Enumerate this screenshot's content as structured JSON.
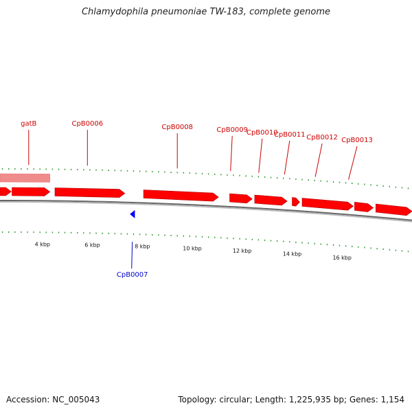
{
  "title": "Chlamydophila pneumoniae TW-183, complete genome",
  "footer": {
    "accession": "Accession: NC_005043",
    "summary": "Topology: circular; Length: 1,225,935 bp; Genes: 1,154"
  },
  "colors": {
    "forward_gene": "#ff0000",
    "reverse_gene": "#0000ff",
    "label_forward": "#cc0000",
    "label_reverse": "#0000cc",
    "tick": "#339933",
    "backbone": "#888888"
  },
  "axis": {
    "kbp_min": 2.3,
    "kbp_max": 18.8
  },
  "scale_labels": [
    {
      "kbp": 4,
      "text": "4 kbp"
    },
    {
      "kbp": 6,
      "text": "6 kbp"
    },
    {
      "kbp": 8,
      "text": "8 kbp"
    },
    {
      "kbp": 10,
      "text": "10 kbp"
    },
    {
      "kbp": 12,
      "text": "12 kbp"
    },
    {
      "kbp": 14,
      "text": "14 kbp"
    },
    {
      "kbp": 16,
      "text": "16 kbp"
    }
  ],
  "gene_labels": [
    {
      "name": "gatB",
      "strand": "+",
      "kbp": 3.45
    },
    {
      "name": "CpB0006",
      "strand": "+",
      "kbp": 5.8
    },
    {
      "name": "CpB0007",
      "strand": "-",
      "kbp": 7.6
    },
    {
      "name": "CpB0008",
      "strand": "+",
      "kbp": 9.4
    },
    {
      "name": "CpB0009",
      "strand": "+",
      "kbp": 11.6
    },
    {
      "name": "CpB0010",
      "strand": "+",
      "kbp": 12.8
    },
    {
      "name": "CpB0011",
      "strand": "+",
      "kbp": 13.9
    },
    {
      "name": "CpB0012",
      "strand": "+",
      "kbp": 15.2
    },
    {
      "name": "CpB0013",
      "strand": "+",
      "kbp": 16.6
    }
  ],
  "genes": [
    {
      "strand": "+",
      "start": 2.3,
      "end": 2.75,
      "faded": false
    },
    {
      "strand": "+",
      "start": 2.78,
      "end": 4.3,
      "faded": false
    },
    {
      "strand": "+",
      "start": 4.5,
      "end": 7.3,
      "faded": false
    },
    {
      "strand": "-",
      "start": 7.5,
      "end": 7.7,
      "faded": false
    },
    {
      "strand": "+",
      "start": 8.05,
      "end": 11.05,
      "faded": false
    },
    {
      "strand": "+",
      "start": 11.5,
      "end": 12.4,
      "faded": false
    },
    {
      "strand": "+",
      "start": 12.5,
      "end": 13.8,
      "faded": false
    },
    {
      "strand": "+",
      "start": 14.0,
      "end": 14.3,
      "faded": false
    },
    {
      "strand": "+",
      "start": 14.4,
      "end": 16.45,
      "faded": false
    },
    {
      "strand": "+",
      "start": 16.5,
      "end": 17.25,
      "faded": false
    },
    {
      "strand": "+",
      "start": 17.35,
      "end": 18.8,
      "faded": false
    },
    {
      "strand": "+",
      "start": 2.3,
      "end": 4.3,
      "faded": true
    }
  ]
}
